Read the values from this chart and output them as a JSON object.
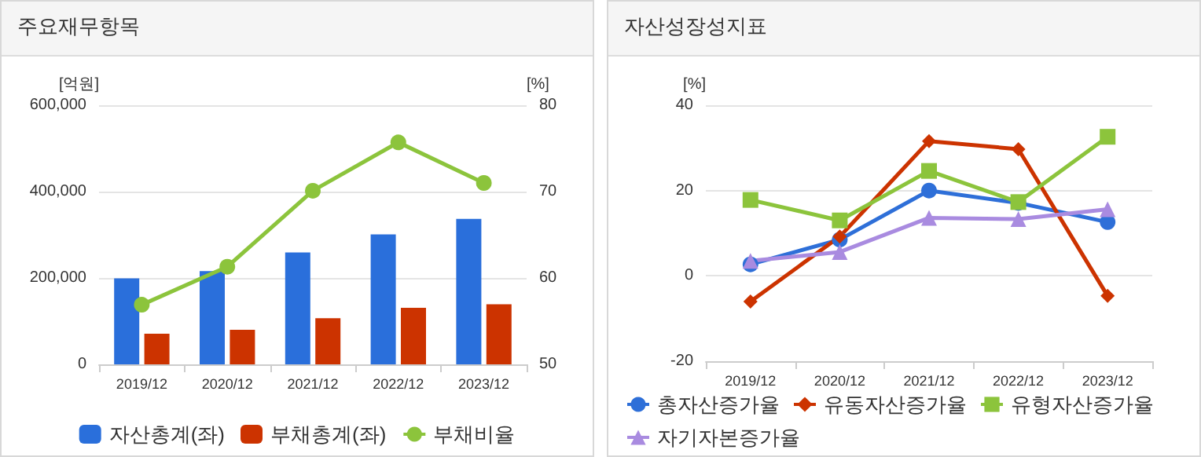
{
  "chart_data": [
    {
      "type": "bar",
      "title": "주요재무항목",
      "ylabel": "[억원]",
      "y2label": "[%]",
      "categories": [
        "2019/12",
        "2020/12",
        "2021/12",
        "2022/12",
        "2023/12"
      ],
      "series": [
        {
          "name": "자산총계(좌)",
          "color": "#2a6fdb",
          "values": [
            199000,
            216000,
            259000,
            301000,
            337000
          ]
        },
        {
          "name": "부채총계(좌)",
          "color": "#cc3300",
          "values": [
            71000,
            80000,
            107000,
            131000,
            139000
          ]
        },
        {
          "name": "부채비율",
          "type": "line",
          "axis": "y2",
          "marker": "circle",
          "color": "#8cc43c",
          "values": [
            56.9,
            61.3,
            70.1,
            75.7,
            71.0
          ]
        }
      ],
      "ylim": [
        0,
        600000
      ],
      "yticks": [
        0,
        {
          "value": 200000,
          "label": "200,000"
        },
        {
          "value": 400000,
          "label": "400,000"
        },
        {
          "value": 600000,
          "label": "600,000"
        }
      ],
      "y2lim": [
        50,
        80
      ],
      "y2ticks": [
        50,
        60,
        70,
        80
      ],
      "grid": "y",
      "legend": "bottom"
    },
    {
      "type": "line",
      "title": "자산성장성지표",
      "ylabel": "[%]",
      "categories": [
        "2019/12",
        "2020/12",
        "2021/12",
        "2022/12",
        "2023/12"
      ],
      "series": [
        {
          "name": "총자산증가율",
          "marker": "circle",
          "color": "#2e6fd8",
          "values": [
            2.7,
            8.5,
            20.0,
            17.1,
            12.6
          ]
        },
        {
          "name": "유동자산증가율",
          "marker": "diamond",
          "color": "#cc3300",
          "values": [
            -6.0,
            9.2,
            31.6,
            29.7,
            -4.7
          ]
        },
        {
          "name": "유형자산증가율",
          "marker": "square",
          "color": "#8cc43c",
          "values": [
            17.8,
            13.0,
            24.6,
            17.3,
            32.6
          ]
        },
        {
          "name": "자기자본증가율",
          "marker": "triangle",
          "color": "#a98be0",
          "values": [
            3.5,
            5.6,
            13.6,
            13.3,
            15.6
          ]
        }
      ],
      "ylim": [
        -20,
        40
      ],
      "yticks": [
        -20,
        0,
        20,
        40
      ],
      "grid": "y",
      "legend": "bottom"
    }
  ]
}
